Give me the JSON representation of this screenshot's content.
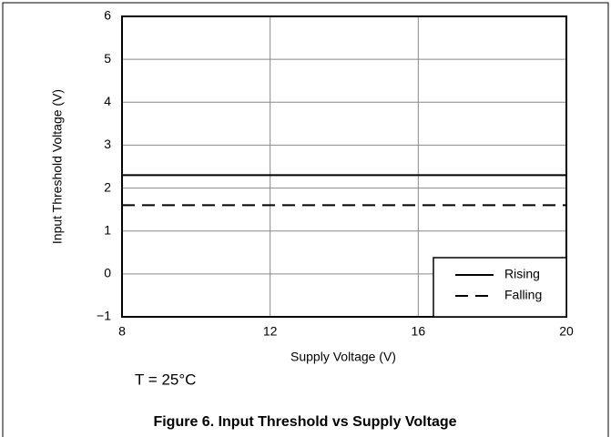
{
  "chart_data": {
    "type": "line",
    "title": "Figure 6. Input Threshold vs Supply Voltage",
    "x_label": "Supply Voltage (V)",
    "y_label": "Input Threshold Voltage  (V)",
    "annotation": "T = 25°C",
    "x": [
      8,
      20
    ],
    "series": [
      {
        "name": "Rising",
        "color": "#000000",
        "dash": "solid",
        "values": [
          2.3,
          2.3
        ]
      },
      {
        "name": "Falling",
        "color": "#000000",
        "dash": "dashed",
        "values": [
          1.6,
          1.6
        ]
      }
    ],
    "xlim": [
      8,
      20
    ],
    "xticks": [
      8,
      12,
      16,
      20
    ],
    "ylim": [
      -1,
      6
    ],
    "yticks": [
      {
        "value": -1,
        "label": "−1"
      },
      0,
      1,
      2,
      3,
      4,
      5,
      6
    ],
    "grid": true,
    "legend": "lower right"
  }
}
